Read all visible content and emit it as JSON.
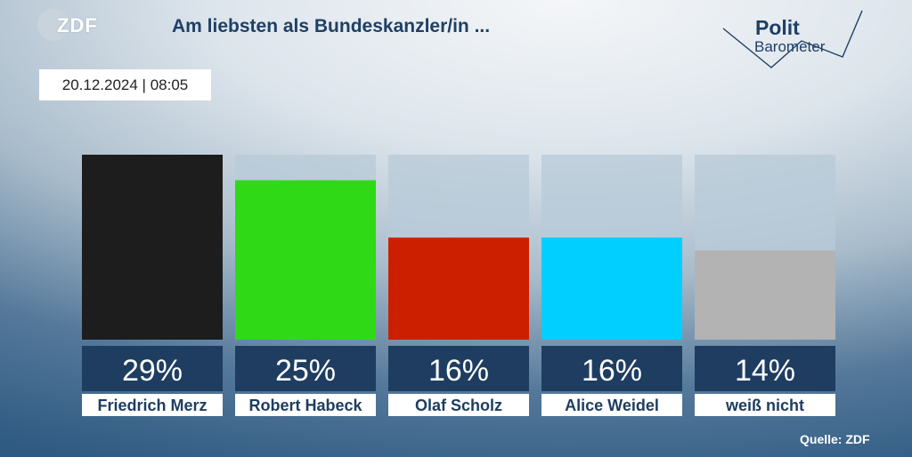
{
  "header": {
    "logo_text": "ZDF",
    "title": "Am liebsten als Bundeskanzler/in ...",
    "date": "20.12.2024 | 08:05",
    "brand_line1": "Polit",
    "brand_line2": "Barometer"
  },
  "chart_data": {
    "type": "bar",
    "title": "Am liebsten als Bundeskanzler/in ...",
    "categories": [
      "Friedrich Merz",
      "Robert Habeck",
      "Olaf Scholz",
      "Alice Weidel",
      "weiß nicht"
    ],
    "values": [
      29,
      25,
      16,
      16,
      14
    ],
    "value_labels": [
      "29%",
      "25%",
      "16%",
      "16%",
      "14%"
    ],
    "colors": [
      "#1d1d1d",
      "#2fd916",
      "#cc1f00",
      "#00cfff",
      "#b3b3b3"
    ],
    "ylim": [
      0,
      29
    ],
    "grid": false,
    "legend": "none"
  },
  "footer": {
    "source": "Quelle: ZDF"
  }
}
